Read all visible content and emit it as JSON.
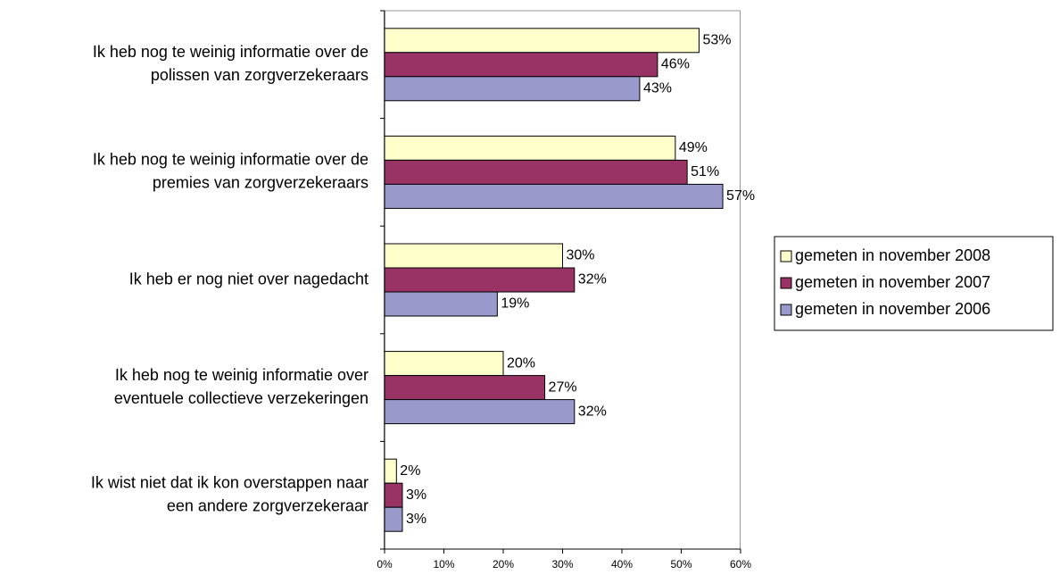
{
  "chart_data": {
    "type": "hbar",
    "categories": [
      [
        "Ik heb nog te weinig informatie over de",
        "polissen van zorgverzekeraars"
      ],
      [
        "Ik heb nog te weinig informatie over de",
        "premies van zorgverzekeraars"
      ],
      [
        "Ik heb er nog niet over nagedacht"
      ],
      [
        "Ik heb nog te weinig informatie over",
        "eventuele collectieve verzekeringen"
      ],
      [
        "Ik wist niet dat ik kon overstappen naar",
        "een andere zorgverzekeraar"
      ]
    ],
    "series": [
      {
        "name": "gemeten in november 2008",
        "color": "#ffffcc",
        "values": [
          53,
          49,
          30,
          20,
          2
        ],
        "value_labels": [
          "53%",
          "49%",
          "30%",
          "20%",
          "2%"
        ]
      },
      {
        "name": "gemeten in november 2007",
        "color": "#993366",
        "values": [
          46,
          51,
          32,
          27,
          3
        ],
        "value_labels": [
          "46%",
          "51%",
          "32%",
          "27%",
          "3%"
        ]
      },
      {
        "name": "gemeten in november 2006",
        "color": "#9999cc",
        "values": [
          43,
          57,
          19,
          32,
          3
        ],
        "value_labels": [
          "43%",
          "57%",
          "19%",
          "32%",
          "3%"
        ]
      }
    ],
    "xlim": [
      0,
      60
    ],
    "xticks": [
      {
        "value": 0,
        "label": "0%"
      },
      {
        "value": 10,
        "label": "10%"
      },
      {
        "value": 20,
        "label": "20%"
      },
      {
        "value": 30,
        "label": "30%"
      },
      {
        "value": 40,
        "label": "40%"
      },
      {
        "value": 50,
        "label": "50%"
      },
      {
        "value": 60,
        "label": "60%"
      }
    ],
    "legend": "right"
  }
}
